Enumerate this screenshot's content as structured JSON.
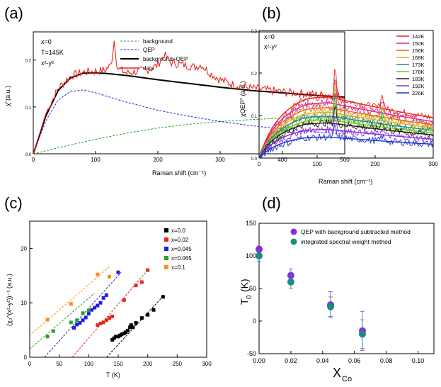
{
  "colors": {
    "black": "#000000",
    "red": "#e8261f",
    "green": "#2ca02c",
    "blue": "#1f1fe0",
    "orange": "#ff8c1a",
    "purple": "#8a2be2",
    "teal": "#1a8c84"
  },
  "chart_data": [
    {
      "panel": "(a)",
      "type": "line",
      "xlabel": "Raman shift (cm⁻¹)",
      "ylabel": "χ''(a.u.)",
      "xlim": [
        0,
        500
      ],
      "ylim": [
        0,
        0.26
      ],
      "xticks": [
        "0",
        "100",
        "200",
        "300",
        "400",
        "500"
      ],
      "yticks": [
        {
          "v": 0.0,
          "label": "0.0"
        },
        {
          "v": 0.1,
          "label": "0.1"
        },
        {
          "v": 0.2,
          "label": "0.2"
        }
      ],
      "annotations": [
        "x=0",
        "T=145K",
        "x²-y²"
      ],
      "legend": [
        "background",
        "QEP",
        "background+QEP",
        "data"
      ],
      "series": [
        {
          "name": "background",
          "style": "dashed",
          "color": "#2ca02c",
          "x": [
            0,
            50,
            100,
            150,
            200,
            250,
            300,
            350,
            400,
            450,
            500
          ],
          "values": [
            0.0,
            0.016,
            0.031,
            0.044,
            0.055,
            0.063,
            0.069,
            0.073,
            0.076,
            0.078,
            0.079
          ]
        },
        {
          "name": "QEP",
          "style": "dashed",
          "color": "#1f1fe0",
          "x": [
            0,
            20,
            40,
            60,
            80,
            100,
            150,
            200,
            250,
            300,
            350,
            400,
            450,
            500
          ],
          "values": [
            0.0,
            0.07,
            0.115,
            0.133,
            0.136,
            0.13,
            0.11,
            0.093,
            0.08,
            0.069,
            0.06,
            0.053,
            0.047,
            0.042
          ]
        },
        {
          "name": "background+QEP",
          "style": "solid",
          "color": "#000000",
          "x": [
            0,
            20,
            40,
            60,
            80,
            100,
            120,
            150,
            200,
            250,
            300,
            350,
            400,
            450,
            500
          ],
          "values": [
            0.0,
            0.08,
            0.135,
            0.162,
            0.172,
            0.173,
            0.171,
            0.167,
            0.158,
            0.15,
            0.142,
            0.135,
            0.13,
            0.125,
            0.121
          ]
        },
        {
          "name": "data",
          "style": "noisy",
          "color": "#e8261f",
          "x": [
            0,
            20,
            40,
            60,
            80,
            100,
            115,
            125,
            130,
            135,
            150,
            170,
            190,
            200,
            210,
            220,
            240,
            260,
            270,
            280,
            300,
            320,
            350,
            400,
            450,
            500
          ],
          "values": [
            0.0,
            0.085,
            0.14,
            0.166,
            0.174,
            0.176,
            0.178,
            0.19,
            0.242,
            0.182,
            0.172,
            0.176,
            0.182,
            0.19,
            0.212,
            0.195,
            0.19,
            0.185,
            0.19,
            0.176,
            0.158,
            0.148,
            0.14,
            0.132,
            0.127,
            0.122
          ]
        }
      ]
    },
    {
      "panel": "(b)",
      "type": "line",
      "xlabel": "Raman shift (cm⁻¹)",
      "ylabel": "χQEP'' (a.u.)",
      "xlim": [
        0,
        300
      ],
      "ylim": [
        0,
        0.3
      ],
      "xticks": [
        "0",
        "100",
        "200",
        "300"
      ],
      "yticks": [
        {
          "v": 0.0,
          "label": "0.0"
        },
        {
          "v": 0.1,
          "label": "0.1"
        },
        {
          "v": 0.2,
          "label": "0.2"
        },
        {
          "v": 0.3,
          "label": "0.3"
        }
      ],
      "annotations": [
        "x=0",
        "x²-y²"
      ],
      "series": [
        {
          "name": "142K",
          "color": "#e8261f",
          "peak": 0.16
        },
        {
          "name": "150K",
          "color": "#e0248c",
          "peak": 0.145
        },
        {
          "name": "156K",
          "color": "#e06a1f",
          "peak": 0.132
        },
        {
          "name": "168K",
          "color": "#e0b020",
          "peak": 0.12
        },
        {
          "name": "173K",
          "color": "#1a8c84",
          "peak": 0.11
        },
        {
          "name": "178K",
          "color": "#7ac21a",
          "peak": 0.1
        },
        {
          "name": "183K",
          "color": "#1a1a1a",
          "peak": 0.092
        },
        {
          "name": "192K",
          "color": "#8a2be2",
          "peak": 0.075
        },
        {
          "name": "226K",
          "color": "#2030d0",
          "peak": 0.055
        }
      ]
    },
    {
      "panel": "(c)",
      "type": "scatter",
      "xlabel": "T (K)",
      "ylabel": "(χ₀^(x²-y²))⁻¹ (a.u.)",
      "xlim": [
        0,
        300
      ],
      "ylim": [
        0,
        25
      ],
      "xticks": [
        "0",
        "50",
        "100",
        "150",
        "200",
        "250",
        "300"
      ],
      "yticks": [
        {
          "v": 0,
          "label": "0"
        },
        {
          "v": 10,
          "label": "10"
        },
        {
          "v": 20,
          "label": "20"
        }
      ],
      "series": [
        {
          "name": "x=0.0",
          "color": "#000000",
          "fit": [
            [
              130,
              0
            ],
            [
              226,
              11.2
            ]
          ],
          "x": [
            140,
            143,
            146,
            150,
            153,
            156,
            160,
            163,
            166,
            170,
            172,
            175,
            180,
            190,
            200,
            210,
            226
          ],
          "values": [
            3.2,
            3.5,
            3.8,
            3.8,
            4.0,
            4.2,
            4.4,
            4.6,
            4.9,
            5.5,
            5.9,
            5.5,
            6.3,
            7.2,
            7.8,
            8.7,
            11.1
          ]
        },
        {
          "name": "x=0.02",
          "color": "#e8261f",
          "fit": [
            [
              72,
              0
            ],
            [
              200,
              16.0
            ]
          ],
          "x": [
            115,
            120,
            125,
            130,
            135,
            140,
            160,
            180,
            190,
            200
          ],
          "values": [
            5.9,
            6.2,
            6.4,
            6.8,
            7.2,
            7.5,
            10.5,
            13.2,
            13.8,
            16.0
          ]
        },
        {
          "name": "x=0.045",
          "color": "#1f1fe0",
          "fit": [
            [
              25,
              0
            ],
            [
              155,
              15.6
            ]
          ],
          "x": [
            75,
            80,
            85,
            90,
            95,
            100,
            105,
            110,
            115,
            120,
            125,
            130,
            150
          ],
          "values": [
            5.4,
            6.0,
            6.3,
            6.8,
            7.3,
            8.0,
            8.7,
            9.1,
            9.5,
            10.0,
            10.9,
            11.4,
            15.6
          ]
        },
        {
          "name": "x=0.065",
          "color": "#2ca02c",
          "fit": [
            [
              0,
              1.5
            ],
            [
              110,
              11.8
            ]
          ],
          "x": [
            30,
            40,
            70,
            80,
            90,
            100
          ],
          "values": [
            3.8,
            4.8,
            6.4,
            6.8,
            8.1,
            8.6
          ]
        },
        {
          "name": "x=0.1",
          "color": "#ff8c1a",
          "fit": [
            [
              0,
              4.0
            ],
            [
              135,
              16.6
            ]
          ],
          "x": [
            30,
            70,
            115,
            135
          ],
          "values": [
            6.9,
            9.8,
            15.2,
            14.8
          ]
        }
      ]
    },
    {
      "panel": "(d)",
      "type": "scatter",
      "xlabel": "X",
      "xlabel_sub": "Co",
      "ylabel": "T",
      "ylabel_sub": "0",
      "ylabel_unit": "(K)",
      "xlim": [
        0,
        0.11
      ],
      "ylim": [
        -50,
        150
      ],
      "xticks": [
        {
          "v": 0.0,
          "label": "0.00"
        },
        {
          "v": 0.02,
          "label": "0.02"
        },
        {
          "v": 0.04,
          "label": "0.04"
        },
        {
          "v": 0.06,
          "label": "0.06"
        },
        {
          "v": 0.08,
          "label": "0.08"
        },
        {
          "v": 0.1,
          "label": "0.10"
        }
      ],
      "yticks": [
        {
          "v": -50,
          "label": "-50"
        },
        {
          "v": 0,
          "label": "0"
        },
        {
          "v": 50,
          "label": "50"
        },
        {
          "v": 100,
          "label": "100"
        },
        {
          "v": 150,
          "label": "150"
        }
      ],
      "series": [
        {
          "name": "QEP with background subtracted method",
          "color": "#8a2be2",
          "x": [
            0.0,
            0.02,
            0.045,
            0.065
          ],
          "values": [
            110,
            70,
            25,
            -15
          ],
          "err": [
            5,
            10,
            20,
            30
          ]
        },
        {
          "name": "integrated spectral weight method",
          "color": "#1a8c84",
          "x": [
            0.0,
            0.02,
            0.045,
            0.065
          ],
          "values": [
            100,
            60,
            22,
            -20
          ],
          "err": [
            8,
            10,
            15,
            22
          ]
        }
      ]
    }
  ]
}
